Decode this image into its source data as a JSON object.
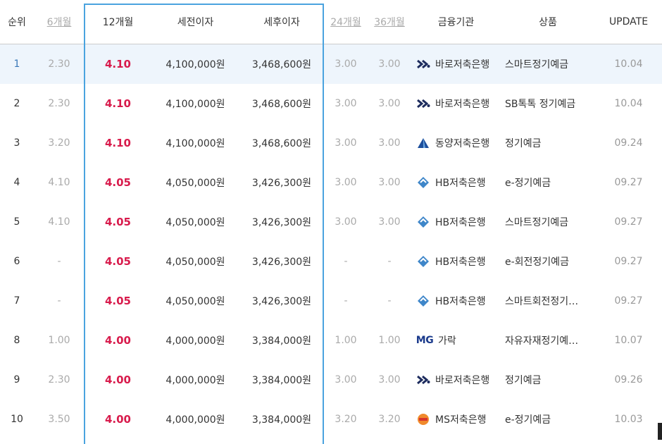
{
  "columns": {
    "rank": "순위",
    "m6": "6개월",
    "m12": "12개월",
    "pretax": "세전이자",
    "posttax": "세후이자",
    "m24": "24개월",
    "m36": "36개월",
    "institution": "금융기관",
    "product": "상품",
    "update": "UPDATE"
  },
  "rows": [
    {
      "rank": "1",
      "m6": "2.30",
      "m12": "4.10",
      "pretax": "4,100,000원",
      "posttax": "3,468,600원",
      "m24": "3.00",
      "m36": "3.00",
      "logo": "baro-icon",
      "bank": "바로저축은행",
      "product": "스마트정기예금",
      "update": "10.04"
    },
    {
      "rank": "2",
      "m6": "2.30",
      "m12": "4.10",
      "pretax": "4,100,000원",
      "posttax": "3,468,600원",
      "m24": "3.00",
      "m36": "3.00",
      "logo": "baro-icon",
      "bank": "바로저축은행",
      "product": "SB톡톡 정기예금",
      "update": "10.04"
    },
    {
      "rank": "3",
      "m6": "3.20",
      "m12": "4.10",
      "pretax": "4,100,000원",
      "posttax": "3,468,600원",
      "m24": "3.00",
      "m36": "3.00",
      "logo": "dongyang-icon",
      "bank": "동양저축은행",
      "product": "정기예금",
      "update": "09.24"
    },
    {
      "rank": "4",
      "m6": "4.10",
      "m12": "4.05",
      "pretax": "4,050,000원",
      "posttax": "3,426,300원",
      "m24": "3.00",
      "m36": "3.00",
      "logo": "hb-icon",
      "bank": "HB저축은행",
      "product": "e-정기예금",
      "update": "09.27"
    },
    {
      "rank": "5",
      "m6": "4.10",
      "m12": "4.05",
      "pretax": "4,050,000원",
      "posttax": "3,426,300원",
      "m24": "3.00",
      "m36": "3.00",
      "logo": "hb-icon",
      "bank": "HB저축은행",
      "product": "스마트정기예금",
      "update": "09.27"
    },
    {
      "rank": "6",
      "m6": "-",
      "m12": "4.05",
      "pretax": "4,050,000원",
      "posttax": "3,426,300원",
      "m24": "-",
      "m36": "-",
      "logo": "hb-icon",
      "bank": "HB저축은행",
      "product": "e-회전정기예금",
      "update": "09.27"
    },
    {
      "rank": "7",
      "m6": "-",
      "m12": "4.05",
      "pretax": "4,050,000원",
      "posttax": "3,426,300원",
      "m24": "-",
      "m36": "-",
      "logo": "hb-icon",
      "bank": "HB저축은행",
      "product": "스마트회전정기…",
      "update": "09.27"
    },
    {
      "rank": "8",
      "m6": "1.00",
      "m12": "4.00",
      "pretax": "4,000,000원",
      "posttax": "3,384,000원",
      "m24": "1.00",
      "m36": "1.00",
      "logo": "mg-icon",
      "logo_text": "MG",
      "bank": "가락",
      "product": "자유자재정기예…",
      "update": "10.07"
    },
    {
      "rank": "9",
      "m6": "2.30",
      "m12": "4.00",
      "pretax": "4,000,000원",
      "posttax": "3,384,000원",
      "m24": "3.00",
      "m36": "3.00",
      "logo": "baro-icon",
      "bank": "바로저축은행",
      "product": "정기예금",
      "update": "09.26"
    },
    {
      "rank": "10",
      "m6": "3.50",
      "m12": "4.00",
      "pretax": "4,000,000원",
      "posttax": "3,384,000원",
      "m24": "3.20",
      "m36": "3.20",
      "logo": "ms-icon",
      "bank": "MS저축은행",
      "product": "e-정기예금",
      "update": "10.03"
    }
  ],
  "colors": {
    "accent_rate": "#d81b4c",
    "highlight_border": "#4aa3df",
    "highlight_row": "#eef5fc"
  }
}
